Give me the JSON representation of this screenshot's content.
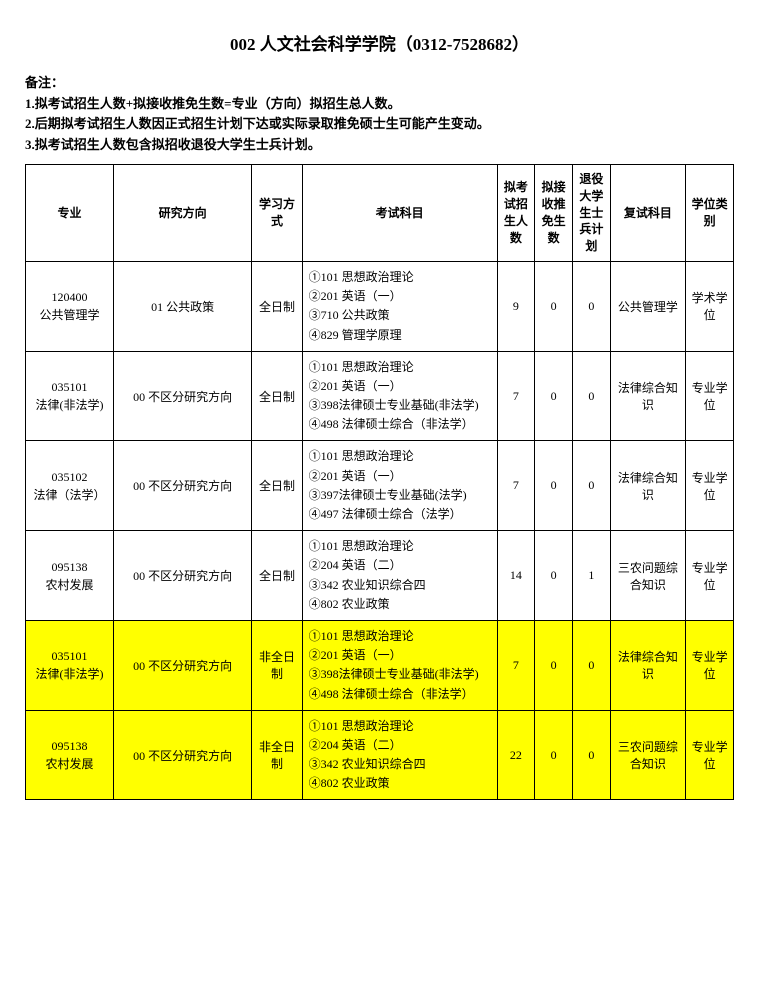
{
  "title": "002 人文社会科学学院（0312-7528682）",
  "notes": {
    "label": "备注：",
    "line1": "1.拟考试招生人数+拟接收推免生数=专业（方向）拟招生总人数。",
    "line2": "2.后期拟考试招生人数因正式招生计划下达或实际录取推免硕士生可能产生变动。",
    "line3": "3.拟考试招生人数包含拟招收退役大学生士兵计划。"
  },
  "headers": {
    "major": "专业",
    "direction": "研究方向",
    "mode": "学习方式",
    "subjects": "考试科目",
    "exam_count": "拟考试招生人数",
    "tuimian_count": "拟接收推免生数",
    "veteran_count": "退役大学生士兵计划",
    "retest": "复试科目",
    "degree": "学位类别"
  },
  "rows": [
    {
      "major_code": "120400",
      "major_name": "公共管理学",
      "direction": "01 公共政策",
      "mode": "全日制",
      "subjects": "①101 思想政治理论\n②201 英语（一）\n③710 公共政策\n④829 管理学原理",
      "exam_count": "9",
      "tuimian_count": "0",
      "veteran_count": "0",
      "retest": "公共管理学",
      "degree": "学术学位",
      "highlight": false
    },
    {
      "major_code": "035101",
      "major_name": "法律(非法学)",
      "direction": "00 不区分研究方向",
      "mode": "全日制",
      "subjects": "①101 思想政治理论\n②201 英语（一）\n③398法律硕士专业基础(非法学)\n④498 法律硕士综合（非法学）",
      "exam_count": "7",
      "tuimian_count": "0",
      "veteran_count": "0",
      "retest": "法律综合知识",
      "degree": "专业学位",
      "highlight": false
    },
    {
      "major_code": "035102",
      "major_name": "法律（法学）",
      "direction": "00 不区分研究方向",
      "mode": "全日制",
      "subjects": "①101 思想政治理论\n②201 英语（一）\n③397法律硕士专业基础(法学)\n④497 法律硕士综合（法学）",
      "exam_count": "7",
      "tuimian_count": "0",
      "veteran_count": "0",
      "retest": "法律综合知识",
      "degree": "专业学位",
      "highlight": false
    },
    {
      "major_code": "095138",
      "major_name": "农村发展",
      "direction": "00 不区分研究方向",
      "mode": "全日制",
      "subjects": "①101 思想政治理论\n②204 英语（二）\n③342 农业知识综合四\n④802 农业政策",
      "exam_count": "14",
      "tuimian_count": "0",
      "veteran_count": "1",
      "retest": "三农问题综合知识",
      "degree": "专业学位",
      "highlight": false
    },
    {
      "major_code": "035101",
      "major_name": "法律(非法学)",
      "direction": "00 不区分研究方向",
      "mode": "非全日制",
      "subjects": "①101 思想政治理论\n②201 英语（一）\n③398法律硕士专业基础(非法学)\n④498 法律硕士综合（非法学）",
      "exam_count": "7",
      "tuimian_count": "0",
      "veteran_count": "0",
      "retest": "法律综合知识",
      "degree": "专业学位",
      "highlight": true
    },
    {
      "major_code": "095138",
      "major_name": "农村发展",
      "direction": "00 不区分研究方向",
      "mode": "非全日制",
      "subjects": "①101 思想政治理论\n②204 英语（二）\n③342 农业知识综合四\n④802 农业政策",
      "exam_count": "22",
      "tuimian_count": "0",
      "veteran_count": "0",
      "retest": "三农问题综合知识",
      "degree": "专业学位",
      "highlight": true
    }
  ],
  "styling": {
    "highlight_color": "#ffff00",
    "border_color": "#000000",
    "background_color": "#ffffff",
    "text_color": "#000000",
    "title_fontsize": 17,
    "body_fontsize": 13,
    "cell_fontsize": 12
  }
}
